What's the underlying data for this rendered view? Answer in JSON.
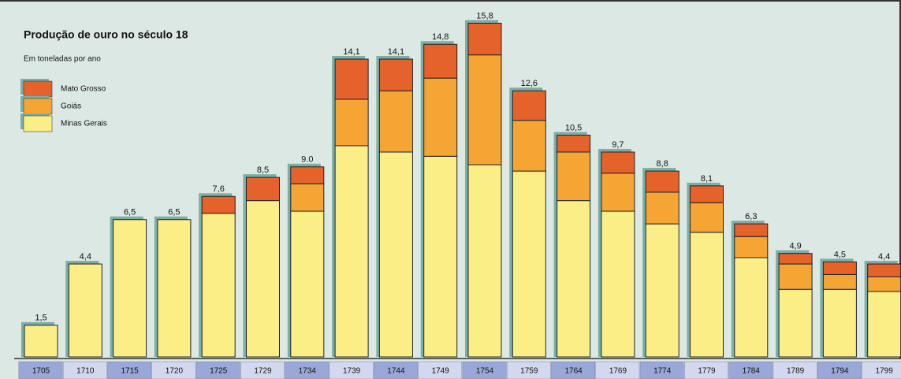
{
  "chart_data": {
    "type": "stacked-bar",
    "title": "Produção de ouro no século 18",
    "subtitle": "Em toneladas por ano",
    "categories": [
      "1705",
      "1710",
      "1715",
      "1720",
      "1725",
      "1729",
      "1734",
      "1739",
      "1744",
      "1749",
      "1754",
      "1759",
      "1764",
      "1769",
      "1774",
      "1779",
      "1784",
      "1789",
      "1794",
      "1799"
    ],
    "series": [
      {
        "name": "Minas Gerais",
        "color": "#fbee86",
        "values": [
          1.5,
          4.4,
          6.5,
          6.5,
          6.8,
          7.4,
          6.9,
          10.0,
          9.7,
          9.5,
          9.1,
          8.8,
          7.4,
          6.9,
          6.3,
          5.9,
          4.7,
          3.2,
          3.2,
          3.1
        ]
      },
      {
        "name": "Goiás",
        "color": "#f4a534",
        "values": [
          0,
          0,
          0,
          0,
          0,
          0,
          1.3,
          2.2,
          2.9,
          3.7,
          5.2,
          2.4,
          2.3,
          1.8,
          1.5,
          1.4,
          1.0,
          1.2,
          0.7,
          0.7
        ]
      },
      {
        "name": "Mato Grosso",
        "color": "#e5622a",
        "values": [
          0,
          0,
          0,
          0,
          0.8,
          1.1,
          0.8,
          1.9,
          1.5,
          1.6,
          1.5,
          1.4,
          0.8,
          1.0,
          1.0,
          0.8,
          0.6,
          0.5,
          0.6,
          0.6
        ]
      }
    ],
    "totals": [
      1.5,
      4.4,
      6.5,
      6.5,
      7.6,
      8.5,
      9.0,
      14.1,
      14.1,
      14.8,
      15.8,
      12.6,
      10.5,
      9.7,
      8.8,
      8.1,
      6.3,
      4.9,
      4.5,
      4.4
    ],
    "total_labels": [
      "1,5",
      "4,4",
      "6,5",
      "6,5",
      "7,6",
      "8,5",
      "9.0",
      "14,1",
      "14,1",
      "14,8",
      "15,8",
      "12,6",
      "10,5",
      "9,7",
      "8,8",
      "8,1",
      "6,3",
      "4,9",
      "4,5",
      "4,4"
    ],
    "ylim": [
      0,
      16.6
    ]
  }
}
